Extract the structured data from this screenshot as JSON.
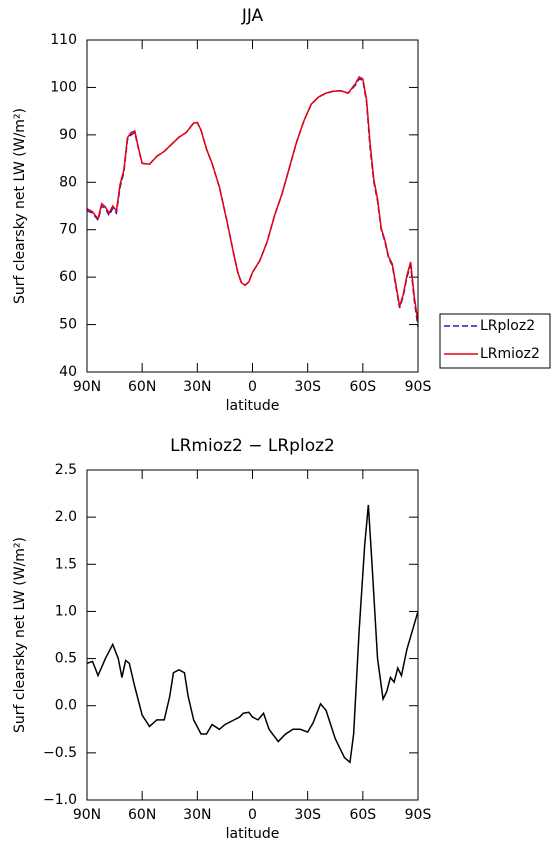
{
  "chart_data": [
    {
      "type": "line",
      "title": "JJA",
      "xlabel": "latitude",
      "ylabel": "Surf clearsky net LW (W/m²)",
      "x": [
        90,
        87,
        84,
        82,
        80,
        78,
        76,
        74,
        72,
        70,
        68,
        66,
        64,
        62,
        60,
        56,
        52,
        48,
        44,
        40,
        36,
        32,
        30,
        28,
        25,
        22,
        18,
        14,
        10,
        8,
        6,
        4,
        2,
        0,
        -4,
        -8,
        -12,
        -16,
        -20,
        -24,
        -28,
        -32,
        -36,
        -40,
        -44,
        -48,
        -52,
        -56,
        -58,
        -60,
        -62,
        -64,
        -66,
        -68,
        -70,
        -72,
        -74,
        -76,
        -78,
        -80,
        -82,
        -84,
        -86,
        -88,
        -90
      ],
      "series": [
        {
          "name": "LRploz2",
          "color": "#1f1fd0",
          "dash": true,
          "values": [
            74,
            73.5,
            72,
            75,
            74.5,
            73,
            74.5,
            73.5,
            79,
            82,
            89,
            90,
            90.5,
            87,
            84,
            83.8,
            85.5,
            86.5,
            88,
            89.5,
            90.5,
            92.5,
            92.6,
            91,
            87,
            84,
            79,
            72,
            64.5,
            61,
            58.8,
            58.3,
            59,
            61,
            63.5,
            67.5,
            73,
            77.5,
            83,
            88.5,
            93,
            96.5,
            98,
            98.8,
            99.2,
            99.3,
            98.8,
            100.5,
            101.8,
            101.5,
            97,
            87,
            80,
            76,
            70,
            67.5,
            64,
            62.5,
            58,
            53.5,
            56,
            60,
            62.5,
            55,
            49.5
          ]
        },
        {
          "name": "LRmioz2",
          "color": "#e8000b",
          "dash": false,
          "values": [
            74.4,
            73.8,
            72.3,
            75.5,
            74.8,
            73.5,
            75,
            74,
            79.6,
            82.5,
            89.4,
            90.5,
            90.8,
            87.2,
            84,
            83.8,
            85.5,
            86.5,
            88,
            89.5,
            90.5,
            92.5,
            92.6,
            91,
            87,
            84,
            79,
            72,
            64.5,
            61,
            58.8,
            58.3,
            59,
            61,
            63.5,
            67.5,
            73,
            77.5,
            83,
            88.5,
            93,
            96.5,
            98,
            98.8,
            99.2,
            99.3,
            98.8,
            100.8,
            102.2,
            101.8,
            97.5,
            88,
            80.5,
            76.5,
            70.3,
            67.8,
            64.3,
            62.8,
            58.4,
            53.8,
            56.4,
            60.4,
            63.2,
            55.8,
            50.5
          ]
        }
      ],
      "xlim": [
        90,
        -90
      ],
      "xticks": [
        {
          "value": 90,
          "label": "90N"
        },
        {
          "value": 60,
          "label": "60N"
        },
        {
          "value": 30,
          "label": "30N"
        },
        0,
        {
          "value": -30,
          "label": "30S"
        },
        {
          "value": -60,
          "label": "60S"
        },
        {
          "value": -90,
          "label": "90S"
        }
      ],
      "ylim": [
        40,
        110
      ],
      "yticks": [
        40,
        50,
        60,
        70,
        80,
        90,
        100,
        110
      ],
      "legend": "right"
    },
    {
      "type": "line",
      "title": "LRmioz2 − LRploz2",
      "xlabel": "latitude",
      "ylabel": "Surf clearsky net LW (W/m²)",
      "x": [
        90,
        87,
        84,
        80,
        76,
        73,
        71,
        69,
        67,
        64,
        60,
        56,
        52,
        48,
        45,
        43,
        40,
        37,
        35,
        32,
        28,
        25,
        22,
        18,
        15,
        10,
        7,
        5,
        2,
        0,
        -3,
        -6,
        -9,
        -14,
        -18,
        -22,
        -26,
        -30,
        -33,
        -37,
        -40,
        -45,
        -50,
        -53,
        -55,
        -58,
        -61,
        -63,
        -65,
        -68,
        -71,
        -73,
        -75,
        -77,
        -79,
        -81,
        -84,
        -87,
        -90
      ],
      "values": [
        0.45,
        0.47,
        0.32,
        0.5,
        0.65,
        0.5,
        0.3,
        0.48,
        0.45,
        0.2,
        -0.1,
        -0.22,
        -0.15,
        -0.15,
        0.1,
        0.35,
        0.38,
        0.35,
        0.1,
        -0.15,
        -0.3,
        -0.3,
        -0.2,
        -0.25,
        -0.2,
        -0.15,
        -0.12,
        -0.08,
        -0.07,
        -0.12,
        -0.15,
        -0.08,
        -0.25,
        -0.38,
        -0.3,
        -0.25,
        -0.25,
        -0.28,
        -0.18,
        0.02,
        -0.05,
        -0.35,
        -0.55,
        -0.6,
        -0.3,
        0.8,
        1.7,
        2.13,
        1.5,
        0.5,
        0.07,
        0.15,
        0.3,
        0.25,
        0.4,
        0.32,
        0.6,
        0.8,
        1.0
      ],
      "color": "#000000",
      "xlim": [
        90,
        -90
      ],
      "xticks": [
        {
          "value": 90,
          "label": "90N"
        },
        {
          "value": 60,
          "label": "60N"
        },
        {
          "value": 30,
          "label": "30N"
        },
        0,
        {
          "value": -30,
          "label": "30S"
        },
        {
          "value": -60,
          "label": "60S"
        },
        {
          "value": -90,
          "label": "90S"
        }
      ],
      "ylim": [
        -1.0,
        2.5
      ],
      "yticks": [
        {
          "value": -1,
          "label": "−1.0"
        },
        {
          "value": -0.5,
          "label": "−0.5"
        },
        {
          "value": 0,
          "label": "0.0"
        },
        0.5,
        {
          "value": 1,
          "label": "1.0"
        },
        1.5,
        {
          "value": 2,
          "label": "2.0"
        },
        2.5
      ]
    }
  ]
}
